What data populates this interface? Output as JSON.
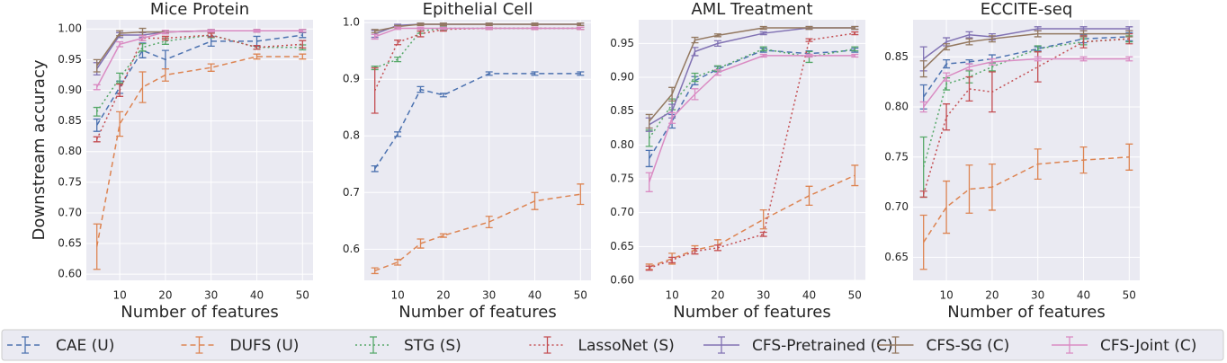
{
  "legend": {
    "entries": [
      {
        "name": "CAE (U)",
        "color": "#4c72b0",
        "line_style": "dashed"
      },
      {
        "name": "DUFS (U)",
        "color": "#dd8452",
        "line_style": "dashed"
      },
      {
        "name": "STG (S)",
        "color": "#55a868",
        "line_style": "dotted"
      },
      {
        "name": "LassoNet (S)",
        "color": "#c44e52",
        "line_style": "dotted"
      },
      {
        "name": "CFS-Pretrained (C)",
        "color": "#8172b3",
        "line_style": "solid"
      },
      {
        "name": "CFS-SG (C)",
        "color": "#937860",
        "line_style": "solid"
      },
      {
        "name": "CFS-Joint (C)",
        "color": "#da8bc3",
        "line_style": "solid"
      }
    ]
  },
  "chart_data": [
    {
      "type": "line",
      "title": "Mice Protein",
      "x_label": "Number of features",
      "y_label": "Downstream accuracy",
      "x": [
        5,
        10,
        15,
        20,
        30,
        40,
        50
      ],
      "xlim": [
        2.7,
        52.3
      ],
      "xticks": [
        10,
        20,
        30,
        40,
        50
      ],
      "ylim": [
        0.59,
        1.015
      ],
      "yticks": [
        {
          "value": 0.6,
          "label": "0.60"
        },
        0.65,
        {
          "value": 0.7,
          "label": "0.70"
        },
        0.75,
        {
          "value": 0.8,
          "label": "0.80"
        },
        0.85,
        {
          "value": 0.9,
          "label": "0.90"
        },
        0.95,
        {
          "value": 1.0,
          "label": "1.00"
        }
      ],
      "grid": true,
      "series": [
        {
          "values": [
            0.843,
            0.905,
            0.965,
            0.95,
            0.98,
            0.98,
            0.99
          ],
          "errors": [
            0.01,
            0.01,
            0.012,
            0.015,
            0.008,
            0.008,
            0.004
          ]
        },
        {
          "values": [
            0.645,
            0.845,
            0.905,
            0.925,
            0.937,
            0.955,
            0.955
          ],
          "errors": [
            0.037,
            0.02,
            0.025,
            0.01,
            0.006,
            0.004,
            0.004
          ]
        },
        {
          "values": [
            0.865,
            0.92,
            0.97,
            0.98,
            0.99,
            0.97,
            0.97
          ],
          "errors": [
            0.007,
            0.008,
            0.006,
            0.005,
            0.004,
            0.003,
            0.004
          ]
        },
        {
          "values": [
            0.82,
            0.9,
            0.985,
            0.985,
            0.99,
            0.97,
            0.975
          ],
          "errors": [
            0.004,
            0.01,
            0.004,
            0.003,
            0.003,
            0.003,
            0.006
          ]
        },
        {
          "values": [
            0.935,
            0.99,
            0.99,
            0.995,
            0.997,
            0.997,
            0.997
          ],
          "errors": [
            0.01,
            0.004,
            0.004,
            0.002,
            0.002,
            0.002,
            0.002
          ]
        },
        {
          "values": [
            0.94,
            0.993,
            0.995,
            0.995,
            0.997,
            0.997,
            0.997
          ],
          "errors": [
            0.01,
            0.004,
            0.006,
            0.002,
            0.002,
            0.002,
            0.002
          ]
        },
        {
          "values": [
            0.905,
            0.975,
            0.985,
            0.995,
            0.997,
            0.997,
            0.997
          ],
          "errors": [
            0.004,
            0.004,
            0.004,
            0.003,
            0.002,
            0.002,
            0.002
          ]
        }
      ]
    },
    {
      "type": "line",
      "title": "Epithelial Cell",
      "x_label": "Number of features",
      "x": [
        5,
        10,
        15,
        20,
        30,
        40,
        50
      ],
      "xlim": [
        2.7,
        52.3
      ],
      "xticks": [
        10,
        20,
        30,
        40,
        50
      ],
      "ylim": [
        0.545,
        1.005
      ],
      "yticks": [
        0.6,
        0.7,
        0.8,
        0.9,
        {
          "value": 1.0,
          "label": "1.0"
        }
      ],
      "grid": true,
      "series": [
        {
          "values": [
            0.742,
            0.803,
            0.882,
            0.872,
            0.91,
            0.91,
            0.91
          ],
          "errors": [
            0.005,
            0.004,
            0.005,
            0.003,
            0.003,
            0.003,
            0.003
          ]
        },
        {
          "values": [
            0.562,
            0.577,
            0.61,
            0.624,
            0.648,
            0.685,
            0.697
          ],
          "errors": [
            0.005,
            0.005,
            0.008,
            0.003,
            0.01,
            0.015,
            0.018
          ]
        },
        {
          "values": [
            0.92,
            0.935,
            0.985,
            0.99,
            0.99,
            0.99,
            0.99
          ],
          "errors": [
            0.003,
            0.004,
            0.004,
            0.003,
            0.002,
            0.002,
            0.002
          ]
        },
        {
          "values": [
            0.88,
            0.965,
            0.98,
            0.988,
            0.99,
            0.99,
            0.99
          ],
          "errors": [
            0.04,
            0.004,
            0.005,
            0.003,
            0.002,
            0.002,
            0.002
          ]
        },
        {
          "values": [
            0.98,
            0.995,
            0.997,
            0.997,
            0.997,
            0.997,
            0.997
          ],
          "errors": [
            0.006,
            0.002,
            0.002,
            0.002,
            0.002,
            0.002,
            0.002
          ]
        },
        {
          "values": [
            0.985,
            0.993,
            0.997,
            0.997,
            0.997,
            0.997,
            0.997
          ],
          "errors": [
            0.003,
            0.002,
            0.002,
            0.002,
            0.002,
            0.002,
            0.002
          ]
        },
        {
          "values": [
            0.975,
            0.99,
            0.99,
            0.99,
            0.99,
            0.99,
            0.99
          ],
          "errors": [
            0.004,
            0.002,
            0.002,
            0.002,
            0.002,
            0.002,
            0.002
          ]
        }
      ]
    },
    {
      "type": "line",
      "title": "AML Treatment",
      "x_label": "Number of features",
      "x": [
        5,
        10,
        15,
        20,
        30,
        40,
        50
      ],
      "xlim": [
        2.7,
        52.3
      ],
      "xticks": [
        10,
        20,
        30,
        40,
        50
      ],
      "ylim": [
        0.6,
        0.985
      ],
      "yticks": [
        {
          "value": 0.6,
          "label": "0.60"
        },
        0.65,
        {
          "value": 0.7,
          "label": "0.70"
        },
        0.75,
        {
          "value": 0.8,
          "label": "0.80"
        },
        0.85,
        {
          "value": 0.9,
          "label": "0.90"
        },
        0.95
      ],
      "grid": true,
      "series": [
        {
          "values": [
            0.78,
            0.835,
            0.895,
            0.912,
            0.94,
            0.935,
            0.94
          ],
          "errors": [
            0.012,
            0.01,
            0.006,
            0.004,
            0.003,
            0.004,
            0.003
          ]
        },
        {
          "values": [
            0.62,
            0.632,
            0.645,
            0.652,
            0.69,
            0.725,
            0.755
          ],
          "errors": [
            0.004,
            0.008,
            0.006,
            0.008,
            0.014,
            0.014,
            0.015
          ]
        },
        {
          "values": [
            0.81,
            0.86,
            0.9,
            0.913,
            0.942,
            0.93,
            0.942
          ],
          "errors": [
            0.012,
            0.008,
            0.006,
            0.004,
            0.003,
            0.008,
            0.003
          ]
        },
        {
          "values": [
            0.618,
            0.63,
            0.643,
            0.648,
            0.668,
            0.955,
            0.965
          ],
          "errors": [
            0.003,
            0.004,
            0.004,
            0.004,
            0.003,
            0.002,
            0.002
          ]
        },
        {
          "values": [
            0.83,
            0.85,
            0.938,
            0.95,
            0.965,
            0.973,
            0.973
          ],
          "errors": [
            0.01,
            0.01,
            0.006,
            0.004,
            0.002,
            0.002,
            0.002
          ]
        },
        {
          "values": [
            0.835,
            0.875,
            0.955,
            0.962,
            0.973,
            0.973,
            0.973
          ],
          "errors": [
            0.01,
            0.01,
            0.004,
            0.002,
            0.002,
            0.002,
            0.002
          ]
        },
        {
          "values": [
            0.745,
            0.84,
            0.875,
            0.907,
            0.932,
            0.932,
            0.932
          ],
          "errors": [
            0.014,
            0.008,
            0.008,
            0.004,
            0.002,
            0.002,
            0.002
          ]
        }
      ]
    },
    {
      "type": "line",
      "title": "ECCITE-seq",
      "x_label": "Number of features",
      "x": [
        5,
        10,
        15,
        20,
        30,
        40,
        50
      ],
      "xlim": [
        2.7,
        52.3
      ],
      "xticks": [
        10,
        20,
        30,
        40,
        50
      ],
      "ylim": [
        0.627,
        0.887
      ],
      "yticks": [
        0.65,
        {
          "value": 0.7,
          "label": "0.70"
        },
        0.75,
        {
          "value": 0.8,
          "label": "0.80"
        },
        0.85
      ],
      "grid": true,
      "series": [
        {
          "values": [
            0.81,
            0.843,
            0.845,
            0.848,
            0.858,
            0.868,
            0.87
          ],
          "errors": [
            0.012,
            0.004,
            0.002,
            0.004,
            0.002,
            0.004,
            0.004
          ]
        },
        {
          "values": [
            0.665,
            0.7,
            0.718,
            0.72,
            0.743,
            0.747,
            0.75
          ],
          "errors": [
            0.027,
            0.026,
            0.024,
            0.023,
            0.015,
            0.013,
            0.013
          ]
        },
        {
          "values": [
            0.74,
            0.823,
            0.83,
            0.84,
            0.858,
            0.865,
            0.868
          ],
          "errors": [
            0.03,
            0.006,
            0.006,
            0.004,
            0.003,
            0.003,
            0.003
          ]
        },
        {
          "values": [
            0.713,
            0.79,
            0.818,
            0.815,
            0.84,
            0.865,
            0.868
          ],
          "errors": [
            0.003,
            0.013,
            0.012,
            0.02,
            0.015,
            0.006,
            0.005
          ]
        },
        {
          "values": [
            0.848,
            0.865,
            0.872,
            0.87,
            0.878,
            0.878,
            0.878
          ],
          "errors": [
            0.012,
            0.004,
            0.003,
            0.003,
            0.002,
            0.002,
            0.002
          ]
        },
        {
          "values": [
            0.838,
            0.86,
            0.865,
            0.868,
            0.873,
            0.873,
            0.873
          ],
          "errors": [
            0.008,
            0.003,
            0.003,
            0.003,
            0.003,
            0.003,
            0.003
          ]
        },
        {
          "values": [
            0.8,
            0.83,
            0.84,
            0.845,
            0.848,
            0.848,
            0.848
          ],
          "errors": [
            0.005,
            0.004,
            0.003,
            0.003,
            0.002,
            0.002,
            0.002
          ]
        }
      ]
    }
  ]
}
